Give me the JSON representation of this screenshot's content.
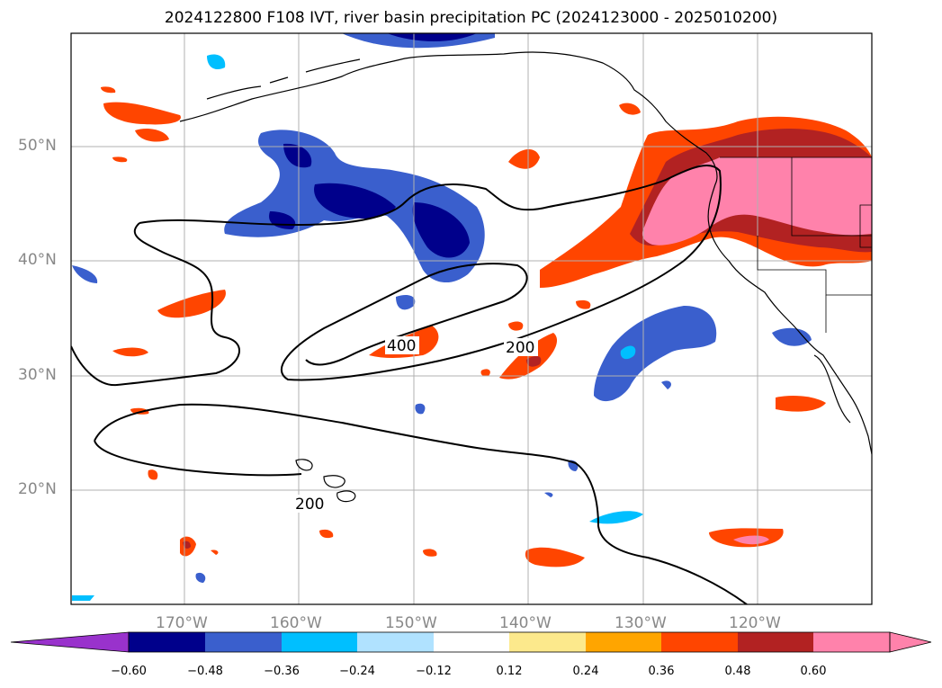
{
  "title": "2024122800 F108 IVT, river basin precipitation PC (2024123000 - 2025010200)",
  "lat_labels": [
    "50°N",
    "40°N",
    "30°N",
    "20°N"
  ],
  "lon_labels": [
    "170°W",
    "160°W",
    "150°W",
    "140°W",
    "130°W",
    "120°W"
  ],
  "contour_labels": [
    "400",
    "200",
    "200"
  ],
  "colorbar": {
    "ticks": [
      "−0.60",
      "−0.48",
      "−0.36",
      "−0.24",
      "−0.12",
      "0.12",
      "0.24",
      "0.36",
      "0.48",
      "0.60"
    ],
    "colors": [
      "#9932cc",
      "#00008b",
      "#3a5fcd",
      "#00bfff",
      "#b0e2ff",
      "#ffffff",
      "#fce98c",
      "#ffa500",
      "#ff4500",
      "#b22222",
      "#ff82ab"
    ]
  }
}
